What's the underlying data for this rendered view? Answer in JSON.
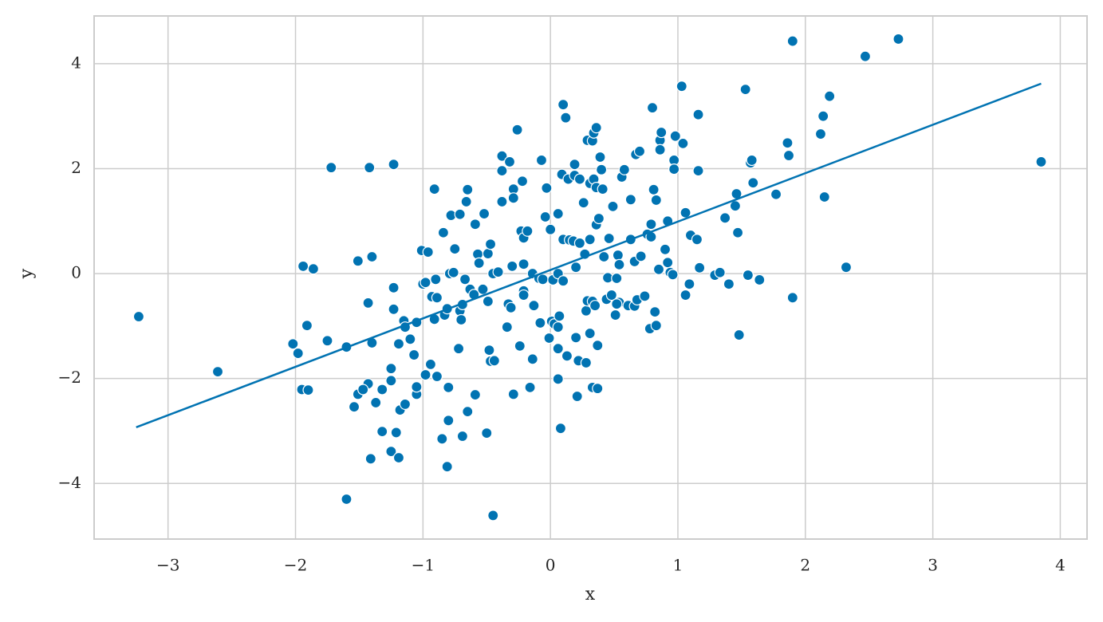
{
  "chart_data": {
    "type": "scatter",
    "xlabel": "x",
    "ylabel": "y",
    "xlim": [
      -3.58,
      4.21
    ],
    "ylim": [
      -5.06,
      4.91
    ],
    "xticks": [
      {
        "value": -3,
        "label": "−3"
      },
      {
        "value": -2,
        "label": "−2"
      },
      {
        "value": -1,
        "label": "−1"
      },
      0,
      1,
      2,
      3,
      4
    ],
    "yticks": [
      {
        "value": -4,
        "label": "−4"
      },
      {
        "value": -2,
        "label": "−2"
      },
      0,
      2,
      4
    ],
    "grid": true,
    "series": [
      {
        "color": "#0173b2",
        "x": [
          -3.23,
          -2.61,
          -1.72,
          -1.42,
          -1.23,
          -1.94,
          -1.86,
          -1.91,
          -2.02,
          -1.98,
          -1.95,
          -1.9,
          -1.75,
          -1.6,
          -1.6,
          -1.54,
          -1.51,
          -1.51,
          -1.4,
          -1.43,
          -1.4,
          -1.43,
          -1.47,
          -1.37,
          -1.32,
          -1.32,
          -1.41,
          -1.25,
          -1.21,
          -1.19,
          -1.25,
          -1.25,
          -1.23,
          -1.23,
          -1.19,
          -1.18,
          -1.14,
          -1.15,
          -1.14,
          -1.1,
          -1.07,
          -1.05,
          -1.05,
          -1.05,
          -1.01,
          -0.96,
          -1.0,
          -0.98,
          -0.98,
          -0.94,
          -0.91,
          -0.9,
          -0.93,
          -0.89,
          -0.91,
          -0.89,
          -0.85,
          -0.84,
          -0.83,
          -0.81,
          -0.8,
          -0.8,
          -0.81,
          -0.79,
          -0.76,
          -0.78,
          -0.71,
          -0.75,
          -0.72,
          -0.71,
          -0.7,
          -0.69,
          -0.69,
          -0.67,
          -0.65,
          -0.66,
          -0.65,
          -0.63,
          -0.6,
          -0.59,
          -0.59,
          -0.57,
          -0.56,
          -0.53,
          -0.52,
          -0.49,
          -0.49,
          -0.47,
          -0.5,
          -0.48,
          -0.47,
          -0.44,
          -0.45,
          -0.45,
          -0.41,
          -0.38,
          -0.38,
          -0.38,
          -0.34,
          -0.33,
          -0.31,
          -0.32,
          -0.29,
          -0.29,
          -0.3,
          -0.29,
          -0.26,
          -0.24,
          -0.22,
          -0.23,
          -0.21,
          -0.21,
          -0.21,
          -0.18,
          -0.21,
          -0.16,
          -0.14,
          -0.14,
          -0.13,
          -0.09,
          -0.08,
          -0.07,
          -0.06,
          -0.04,
          -0.03,
          -0.01,
          0.0,
          0.01,
          0.02,
          0.03,
          0.06,
          0.06,
          0.06,
          0.07,
          0.06,
          0.06,
          0.08,
          0.09,
          0.1,
          0.1,
          0.1,
          0.12,
          0.13,
          0.14,
          0.15,
          0.18,
          0.19,
          0.19,
          0.2,
          0.2,
          0.22,
          0.21,
          0.23,
          0.23,
          0.26,
          0.27,
          0.28,
          0.28,
          0.29,
          0.29,
          0.31,
          0.31,
          0.31,
          0.33,
          0.33,
          0.33,
          0.34,
          0.34,
          0.35,
          0.36,
          0.36,
          0.36,
          0.37,
          0.37,
          0.39,
          0.38,
          0.4,
          0.41,
          0.42,
          0.44,
          0.45,
          0.46,
          0.48,
          0.49,
          0.51,
          0.52,
          0.53,
          0.54,
          0.52,
          0.54,
          0.56,
          0.58,
          0.61,
          0.63,
          0.63,
          0.66,
          0.66,
          0.67,
          0.68,
          0.7,
          0.71,
          0.74,
          0.76,
          0.78,
          0.79,
          0.79,
          0.8,
          0.81,
          0.83,
          0.82,
          0.83,
          0.85,
          0.86,
          0.87,
          0.86,
          0.9,
          0.92,
          0.92,
          0.94,
          0.96,
          0.97,
          0.97,
          0.98,
          1.03,
          1.04,
          1.06,
          1.06,
          1.09,
          1.1,
          1.15,
          1.16,
          1.16,
          1.17,
          1.29,
          1.33,
          1.37,
          1.4,
          1.45,
          1.46,
          1.47,
          1.48,
          1.53,
          1.55,
          1.57,
          1.58,
          1.59,
          1.64,
          1.77,
          1.86,
          1.87,
          1.9,
          1.9,
          2.12,
          2.14,
          2.15,
          2.19,
          2.32,
          2.47,
          2.73,
          3.85
        ],
        "values": [
          -0.82,
          -1.87,
          2.02,
          2.02,
          2.08,
          0.14,
          0.09,
          -0.99,
          -1.34,
          -1.52,
          -2.21,
          -2.22,
          -1.28,
          -1.4,
          -4.3,
          -2.54,
          -2.3,
          0.24,
          0.32,
          -0.56,
          -1.32,
          -2.1,
          -2.21,
          -2.46,
          -2.21,
          -3.01,
          -3.53,
          -3.39,
          -3.03,
          -3.51,
          -2.04,
          -1.81,
          -0.27,
          -0.68,
          -1.34,
          -2.6,
          -2.49,
          -0.9,
          -1.02,
          -1.25,
          -1.55,
          -0.93,
          -2.3,
          -2.16,
          0.44,
          0.41,
          -0.2,
          -0.17,
          -1.93,
          -1.73,
          1.61,
          -0.11,
          -0.44,
          -0.46,
          -0.87,
          -1.96,
          -3.15,
          0.78,
          -0.79,
          -0.67,
          -2.17,
          -2.8,
          -3.68,
          0.0,
          0.02,
          1.11,
          1.13,
          0.47,
          -1.43,
          -0.71,
          -0.88,
          -0.59,
          -3.1,
          -0.11,
          -2.63,
          1.37,
          1.6,
          -0.3,
          -0.4,
          -2.31,
          0.94,
          0.37,
          0.2,
          -0.3,
          1.14,
          -0.53,
          0.38,
          0.56,
          -3.04,
          -1.46,
          -1.67,
          -1.66,
          -4.61,
          0.0,
          0.03,
          2.24,
          1.37,
          1.96,
          -1.02,
          -0.58,
          -0.65,
          2.13,
          1.61,
          1.44,
          0.14,
          -2.3,
          2.74,
          -1.38,
          1.76,
          0.81,
          -0.33,
          -0.41,
          0.68,
          0.81,
          0.18,
          -2.17,
          0.0,
          -1.63,
          -0.61,
          -0.09,
          -0.94,
          2.16,
          -0.11,
          1.08,
          1.63,
          -1.23,
          0.84,
          -0.91,
          -0.12,
          -0.96,
          -1.02,
          -1.43,
          -2.01,
          -0.81,
          1.14,
          0.0,
          -2.95,
          1.89,
          3.22,
          0.65,
          -0.14,
          2.97,
          -1.57,
          1.8,
          0.64,
          0.62,
          2.08,
          1.87,
          0.12,
          -1.22,
          -1.66,
          -2.34,
          1.8,
          0.58,
          1.35,
          0.37,
          -0.71,
          -1.7,
          2.54,
          -0.52,
          1.72,
          0.65,
          -1.14,
          -0.53,
          -2.17,
          2.53,
          2.68,
          1.8,
          -0.61,
          0.93,
          2.78,
          1.64,
          -1.37,
          -2.19,
          2.22,
          1.05,
          1.98,
          1.61,
          0.32,
          -0.49,
          -0.08,
          0.67,
          -0.41,
          1.28,
          -0.79,
          -0.09,
          0.35,
          -0.55,
          -0.58,
          0.17,
          1.84,
          1.98,
          -0.61,
          1.41,
          0.65,
          0.23,
          -0.62,
          2.27,
          -0.5,
          2.33,
          0.33,
          -0.43,
          0.75,
          -1.05,
          0.94,
          0.7,
          3.16,
          1.6,
          1.4,
          -0.73,
          -0.99,
          0.08,
          2.54,
          2.69,
          2.36,
          0.46,
          1.0,
          0.21,
          0.02,
          -0.02,
          2.16,
          1.99,
          2.62,
          3.57,
          2.48,
          1.16,
          -0.41,
          -0.2,
          0.73,
          0.65,
          1.96,
          3.03,
          0.11,
          -0.03,
          0.02,
          1.06,
          -0.2,
          1.29,
          1.52,
          0.78,
          -1.17,
          3.51,
          -0.03,
          2.11,
          2.16,
          1.73,
          -0.12,
          1.51,
          2.49,
          2.25,
          -0.46,
          4.43,
          2.66,
          3.0,
          1.46,
          3.38,
          0.12,
          4.14,
          4.47,
          2.13
        ]
      }
    ],
    "regression_line": {
      "color": "#0173b2",
      "x": [
        -3.25,
        3.85
      ],
      "values": [
        -2.93,
        3.62
      ]
    }
  }
}
